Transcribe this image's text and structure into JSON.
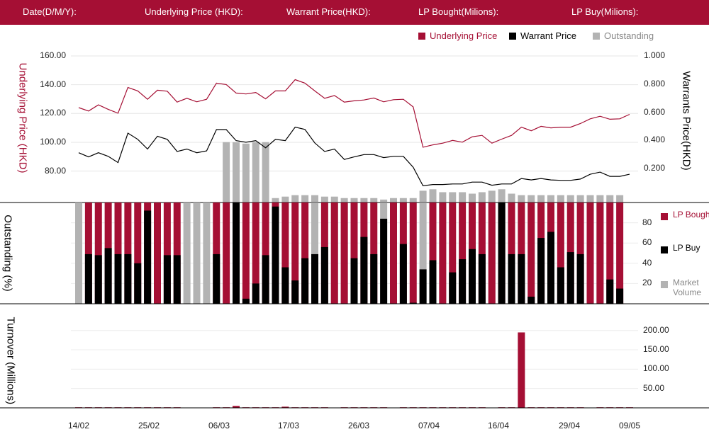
{
  "header": {
    "date_label": "Date(D/M/Y):",
    "underlying_label": "Underlying Price (HKD):",
    "warrant_label": "Warrant  Price(HKD):",
    "lp_bought_label": "LP Bought(Milions):",
    "lp_buy_label": "LP Buy(Milions):"
  },
  "legend_top": {
    "underlying": "Underlying Price",
    "warrant": "Warrant  Price",
    "outstanding": "Outstanding"
  },
  "legend_right": {
    "lp_bought": "LP Bought",
    "lp_buy": "LP Buy",
    "market_volume": "Market Volume"
  },
  "axis_labels": {
    "left_top": "Underlying Price (HKD)",
    "right_top": "Warrants  Price(HKD)",
    "middle": "Outstanding (%)",
    "bottom": "Turnover (Millions)"
  },
  "colors": {
    "underlying": "#a50f34",
    "warrant": "#000000",
    "outstanding": "#b3b3b3",
    "header_bg": "#a50f34"
  },
  "chart_data": [
    {
      "type": "line",
      "name": "price-panel",
      "x_ticks": [
        "14/02",
        "25/02",
        "06/03",
        "17/03",
        "26/03",
        "07/04",
        "16/04",
        "29/04",
        "09/05"
      ],
      "y_left_ticks": [
        "160.00",
        "140.00",
        "120.00",
        "100.00",
        "80.00"
      ],
      "y_right_ticks": [
        "1.000",
        "0.800",
        "0.600",
        "0.400",
        "0.200"
      ],
      "y_left_range": [
        68,
        160
      ],
      "y_right_range": [
        0.06,
        1.0
      ],
      "series": [
        {
          "name": "Underlying Price",
          "axis": "left",
          "values": [
            124.1,
            121.7,
            126,
            122.9,
            120.2,
            138.1,
            135.7,
            129.9,
            136.2,
            135.5,
            127.9,
            130.6,
            128.1,
            129.9,
            141.1,
            140.1,
            134.2,
            133.6,
            134.6,
            130.2,
            135.7,
            135.7,
            143.5,
            141.1,
            135.7,
            130.6,
            132.5,
            127.9,
            128.8,
            129.4,
            130.8,
            128.1,
            129.6,
            129.9,
            124.6,
            96.6,
            98.2,
            99.4,
            101.3,
            100.1,
            103.8,
            104.8,
            99.4,
            102.2,
            104.8,
            110.5,
            108,
            111.1,
            110,
            110.5,
            110.5,
            113,
            116.3,
            118.1,
            116,
            116.3,
            119.4
          ]
        },
        {
          "name": "Warrant  Price",
          "axis": "right",
          "values": [
            0.313,
            0.283,
            0.313,
            0.287,
            0.243,
            0.452,
            0.408,
            0.339,
            0.43,
            0.408,
            0.322,
            0.339,
            0.313,
            0.326,
            0.477,
            0.477,
            0.399,
            0.387,
            0.399,
            0.348,
            0.408,
            0.399,
            0.495,
            0.478,
            0.382,
            0.322,
            0.339,
            0.265,
            0.283,
            0.3,
            0.3,
            0.278,
            0.287,
            0.287,
            0.21,
            0.078,
            0.087,
            0.087,
            0.091,
            0.091,
            0.104,
            0.104,
            0.082,
            0.091,
            0.091,
            0.13,
            0.12,
            0.13,
            0.12,
            0.117,
            0.117,
            0.126,
            0.16,
            0.175,
            0.145,
            0.145,
            0.16
          ]
        }
      ]
    },
    {
      "type": "bar",
      "name": "outstanding-panel",
      "y_right_ticks": [
        "80",
        "60",
        "40",
        "20"
      ],
      "y_range": [
        0,
        100
      ],
      "outstanding_values": [
        0,
        0,
        0,
        0,
        0,
        0,
        0,
        0,
        0,
        0,
        0,
        0,
        0,
        0,
        0,
        0,
        0,
        0,
        0,
        0,
        0,
        0,
        0,
        0,
        0,
        0,
        0,
        0,
        0,
        0,
        0,
        0,
        0,
        0,
        0,
        0,
        0,
        0,
        0,
        0,
        0,
        0,
        0,
        0,
        0,
        0,
        0,
        0,
        0,
        0,
        0,
        0,
        0,
        0,
        0,
        0,
        0,
        0,
        0,
        0,
        0,
        0,
        0,
        0,
        0,
        0,
        0,
        0,
        0,
        0,
        0
      ],
      "outstanding_top_values": [
        0,
        0,
        0,
        0,
        0,
        0,
        0,
        0,
        0,
        0,
        0,
        0,
        0,
        0,
        0,
        41,
        41,
        40,
        41,
        41,
        3,
        4,
        5,
        5,
        5,
        4,
        4,
        3,
        3,
        3,
        3,
        2,
        3,
        3,
        3,
        8,
        9,
        7,
        7,
        7,
        6,
        7,
        8,
        9,
        6,
        5,
        5,
        5,
        5,
        5,
        5,
        5,
        5,
        5,
        5,
        5
      ],
      "lp_bought_values": [
        0,
        100,
        100,
        100,
        100,
        100,
        100,
        100,
        100,
        100,
        100,
        0,
        0,
        0,
        100,
        100,
        100,
        100,
        100,
        100,
        100,
        100,
        100,
        100,
        0,
        100,
        100,
        100,
        100,
        100,
        100,
        0,
        100,
        100,
        100,
        0,
        100,
        100,
        100,
        100,
        100,
        100,
        100,
        100,
        100,
        100,
        100,
        100,
        100,
        100,
        100,
        100,
        100,
        100,
        100,
        100
      ],
      "lp_buy_values": [
        0,
        49,
        48,
        55,
        49,
        49,
        40,
        92,
        0,
        48,
        48,
        0,
        0,
        0,
        49,
        0,
        100,
        5,
        20,
        48,
        96,
        36,
        23,
        45,
        49,
        56,
        0,
        0,
        45,
        66,
        49,
        84,
        0,
        59,
        1,
        34,
        43,
        0,
        31,
        44,
        54,
        49,
        0,
        100,
        49,
        49,
        7,
        65,
        71,
        36,
        51,
        49,
        0,
        0,
        24,
        15
      ],
      "market_volume_values": [
        100,
        0,
        0,
        0,
        0,
        0,
        0,
        0,
        0,
        0,
        0,
        100,
        100,
        100,
        0,
        0,
        0,
        0,
        0,
        0,
        0,
        0,
        0,
        0,
        100,
        0,
        100,
        100,
        0,
        0,
        0,
        100,
        0,
        0,
        0,
        100,
        0,
        100,
        0,
        0,
        0,
        0,
        100,
        0,
        0,
        0,
        0,
        0,
        0,
        0,
        0,
        0,
        100,
        100,
        0,
        0
      ]
    },
    {
      "type": "bar",
      "name": "turnover-panel",
      "y_right_ticks": [
        "200.00",
        "150.00",
        "100.00",
        "50.00"
      ],
      "y_range": [
        0,
        205
      ],
      "values": [
        1.5,
        1.5,
        1.5,
        1.5,
        1.5,
        1.5,
        1.5,
        1.5,
        1.5,
        1.5,
        1.5,
        0,
        0,
        0,
        1.5,
        1.5,
        5,
        1.5,
        1.5,
        1.5,
        1.5,
        3,
        1.5,
        1.5,
        1.5,
        1.5,
        0,
        1.5,
        1.5,
        1.5,
        1.5,
        1.5,
        0,
        1.5,
        1.5,
        1.5,
        1.5,
        1.5,
        1.5,
        1.5,
        1.5,
        1.5,
        0,
        1.5,
        1.5,
        195,
        1.5,
        1.5,
        1.5,
        1.5,
        1.5,
        1.5,
        0,
        1.5,
        1.5,
        1.5,
        1.5
      ]
    }
  ]
}
